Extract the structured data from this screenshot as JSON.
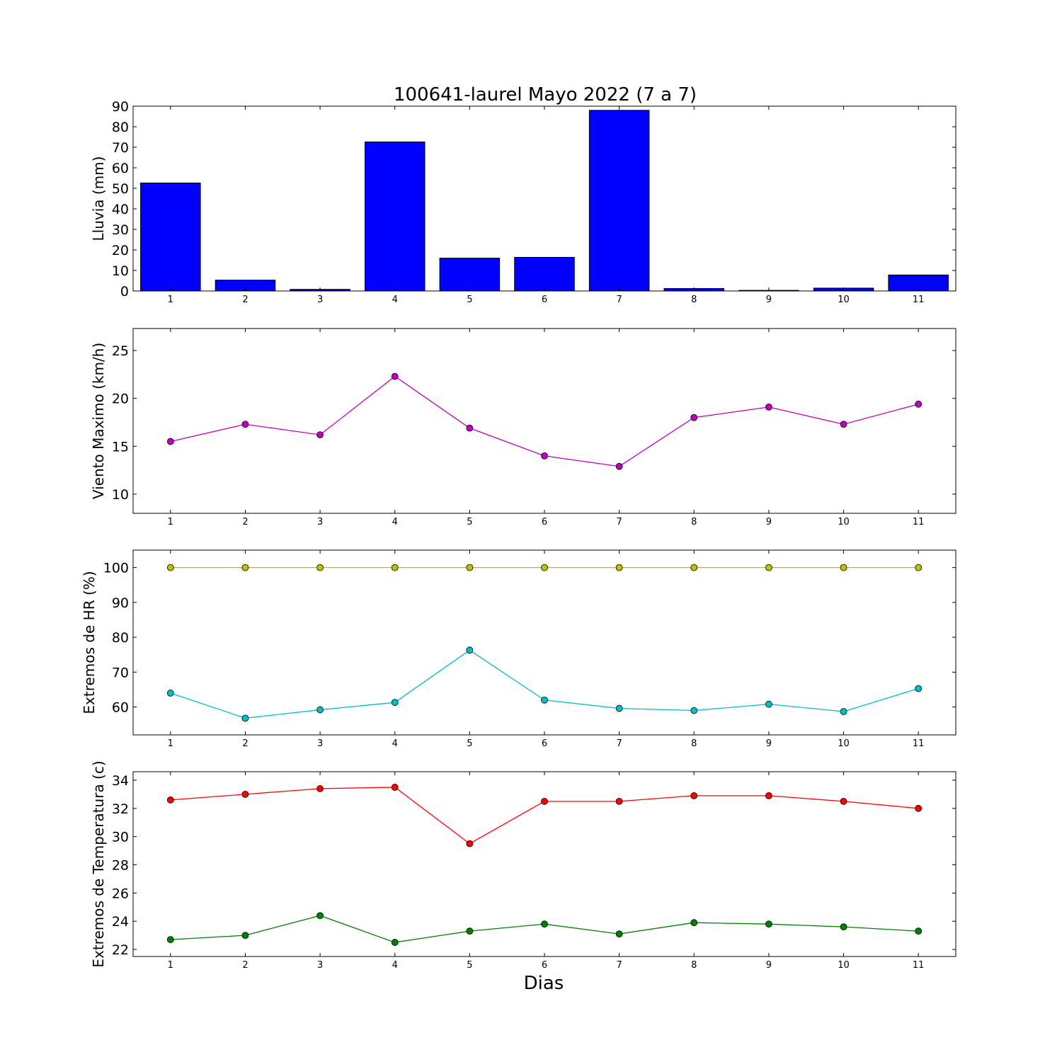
{
  "title": "100641-laurel Mayo 2022  (7 a 7)",
  "xlabel": "Dias",
  "chart_data": [
    {
      "type": "bar",
      "ylabel": "Lluvia (mm)",
      "categories": [
        1,
        2,
        3,
        4,
        5,
        6,
        7,
        8,
        9,
        10,
        11
      ],
      "ylim": [
        0,
        90
      ],
      "yticks": [
        0,
        10,
        20,
        30,
        40,
        50,
        60,
        70,
        80,
        90
      ],
      "color": "#0000ff",
      "values": [
        52.6,
        5.3,
        0.8,
        72.6,
        16.0,
        16.4,
        88.0,
        1.2,
        0.3,
        1.4,
        7.8
      ]
    },
    {
      "type": "line",
      "ylabel": "Viento Maximo (km/h)",
      "x": [
        1,
        2,
        3,
        4,
        5,
        6,
        7,
        8,
        9,
        10,
        11
      ],
      "ylim": [
        8,
        27.3
      ],
      "yticks": [
        10,
        15,
        20,
        25
      ],
      "series": [
        {
          "color": "#bf00bf",
          "values": [
            15.5,
            17.3,
            16.2,
            22.3,
            16.9,
            14.0,
            12.9,
            18.0,
            19.1,
            17.3,
            19.4
          ]
        }
      ]
    },
    {
      "type": "line",
      "ylabel": "Extremos de HR (%)",
      "x": [
        1,
        2,
        3,
        4,
        5,
        6,
        7,
        8,
        9,
        10,
        11
      ],
      "ylim": [
        52,
        105
      ],
      "yticks": [
        60,
        70,
        80,
        90,
        100
      ],
      "series": [
        {
          "color": "#bfbf00",
          "values": [
            100,
            100,
            100,
            100,
            100,
            100,
            100,
            100,
            100,
            100,
            100
          ]
        },
        {
          "color": "#00bfbf",
          "values": [
            64.0,
            56.8,
            59.2,
            61.3,
            76.3,
            62.0,
            59.6,
            59.0,
            60.8,
            58.7,
            65.3
          ]
        }
      ]
    },
    {
      "type": "line",
      "ylabel": "Extremos de Temperatura (c)",
      "x": [
        1,
        2,
        3,
        4,
        5,
        6,
        7,
        8,
        9,
        10,
        11
      ],
      "ylim": [
        21.5,
        34.6
      ],
      "yticks": [
        22,
        24,
        26,
        28,
        30,
        32,
        34
      ],
      "series": [
        {
          "color": "#ff0000",
          "values": [
            32.6,
            33.0,
            33.4,
            33.5,
            29.5,
            32.5,
            32.5,
            32.9,
            32.9,
            32.5,
            32.0
          ]
        },
        {
          "color": "#008000",
          "values": [
            22.7,
            23.0,
            24.4,
            22.5,
            23.3,
            23.8,
            23.1,
            23.9,
            23.8,
            23.6,
            23.3
          ]
        }
      ]
    }
  ]
}
